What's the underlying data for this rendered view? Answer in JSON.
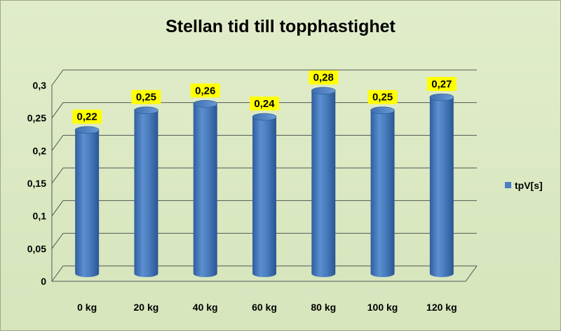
{
  "chart_data": {
    "type": "bar",
    "title": "Stellan tid till topphastighet",
    "categories": [
      "0 kg",
      "20 kg",
      "40 kg",
      "60 kg",
      "80 kg",
      "100 kg",
      "120 kg"
    ],
    "series": [
      {
        "name": "tpV[s]",
        "values": [
          0.22,
          0.25,
          0.26,
          0.24,
          0.28,
          0.25,
          0.27
        ],
        "color": "#4a7ec0"
      }
    ],
    "data_labels": [
      "0,22",
      "0,25",
      "0,26",
      "0,24",
      "0,28",
      "0,25",
      "0,27"
    ],
    "y_ticks": [
      "0",
      "0,05",
      "0,1",
      "0,15",
      "0,2",
      "0,25",
      "0,3"
    ],
    "y_tick_values": [
      0,
      0.05,
      0.1,
      0.15,
      0.2,
      0.25,
      0.3
    ],
    "ylim": [
      0,
      0.3
    ],
    "grid": true,
    "legend_position": "right",
    "label_background": "#ffff00"
  }
}
